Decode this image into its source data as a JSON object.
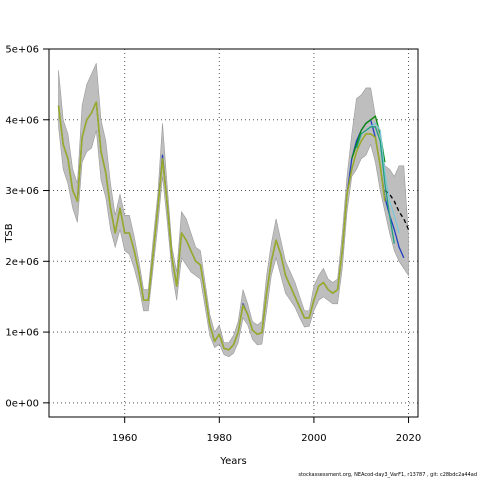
{
  "footer": "stockassessment.org, NEAcod-day3_VarF1, r13787 , git: c28bdc2a44ad",
  "chart_data": {
    "type": "line",
    "title": "",
    "xlabel": "Years",
    "ylabel": "TSB",
    "xlim": [
      1944,
      2022
    ],
    "ylim": [
      -200000,
      5000000
    ],
    "x_ticks": [
      1960,
      1980,
      2000,
      2020
    ],
    "x_tick_labels": [
      "1960",
      "1980",
      "2000",
      "2020"
    ],
    "y_ticks": [
      0,
      1000000,
      2000000,
      3000000,
      4000000,
      5000000
    ],
    "y_tick_labels": [
      "0e+00",
      "1e+06",
      "2e+06",
      "3e+06",
      "4e+06",
      "5e+06"
    ],
    "grid": "dotted",
    "confidence_band": {
      "color": "#bebebe",
      "x": [
        1946,
        1947,
        1948,
        1949,
        1950,
        1951,
        1952,
        1953,
        1954,
        1955,
        1956,
        1957,
        1958,
        1959,
        1960,
        1961,
        1962,
        1963,
        1964,
        1965,
        1966,
        1967,
        1968,
        1969,
        1970,
        1971,
        1972,
        1973,
        1974,
        1975,
        1976,
        1977,
        1978,
        1979,
        1980,
        1981,
        1982,
        1983,
        1984,
        1985,
        1986,
        1987,
        1988,
        1989,
        1990,
        1991,
        1992,
        1993,
        1994,
        1995,
        1996,
        1997,
        1998,
        1999,
        2000,
        2001,
        2002,
        2003,
        2004,
        2005,
        2006,
        2007,
        2008,
        2009,
        2010,
        2011,
        2012,
        2013,
        2014,
        2015,
        2016,
        2017,
        2018,
        2019,
        2020
      ],
      "upper": [
        4700000,
        4000000,
        3800000,
        3300000,
        3100000,
        4200000,
        4500000,
        4650000,
        4800000,
        4000000,
        3700000,
        3100000,
        2650000,
        2950000,
        2650000,
        2650000,
        2350000,
        2000000,
        1600000,
        1600000,
        2300000,
        2950000,
        3950000,
        3050000,
        2200000,
        1850000,
        2700000,
        2600000,
        2400000,
        2200000,
        2150000,
        1700000,
        1250000,
        1000000,
        1100000,
        850000,
        850000,
        950000,
        1150000,
        1600000,
        1400000,
        1150000,
        1100000,
        1150000,
        1800000,
        2250000,
        2600000,
        2300000,
        2000000,
        1850000,
        1700000,
        1500000,
        1300000,
        1300000,
        1650000,
        1800000,
        1900000,
        1750000,
        1700000,
        1750000,
        2400000,
        3200000,
        3800000,
        4300000,
        4350000,
        4450000,
        4450000,
        4050000,
        3700000,
        3350000,
        3300000,
        3200000,
        3350000,
        3350000,
        2350000
      ],
      "lower": [
        3900000,
        3300000,
        3100000,
        2750000,
        2550000,
        3400000,
        3550000,
        3600000,
        3850000,
        3150000,
        2900000,
        2450000,
        2200000,
        2450000,
        2150000,
        2100000,
        1900000,
        1650000,
        1300000,
        1300000,
        1900000,
        2500000,
        3200000,
        2550000,
        1850000,
        1450000,
        2050000,
        1950000,
        1850000,
        1800000,
        1750000,
        1350000,
        950000,
        780000,
        830000,
        680000,
        650000,
        700000,
        850000,
        1200000,
        1100000,
        900000,
        820000,
        830000,
        1300000,
        1800000,
        2050000,
        1800000,
        1550000,
        1450000,
        1350000,
        1200000,
        1070000,
        1080000,
        1300000,
        1450000,
        1500000,
        1450000,
        1400000,
        1400000,
        1900000,
        2700000,
        3200000,
        3300000,
        3450000,
        3500000,
        3650000,
        3400000,
        3000000,
        2700000,
        2400000,
        2150000,
        2000000,
        1900000,
        1800000
      ]
    },
    "series": [
      {
        "color": "#000000",
        "dash": "dashed",
        "x": [
          2015,
          2016,
          2017,
          2018,
          2019,
          2020
        ],
        "values": [
          3000000,
          2950000,
          2850000,
          2700000,
          2600000,
          2450000
        ]
      },
      {
        "color": "#2040c0",
        "x": [
          1946,
          1947,
          1948,
          1949,
          1950,
          1951,
          1952,
          1953,
          1954,
          1955,
          1956,
          1957,
          1958,
          1959,
          1960,
          1961,
          1962,
          1963,
          1964,
          1965,
          1966,
          1967,
          1968,
          1969,
          1970,
          1971,
          1972,
          1973,
          1974,
          1975,
          1976,
          1977,
          1978,
          1979,
          1980,
          1981,
          1982,
          1983,
          1984,
          1985,
          1986,
          1987,
          1988,
          1989,
          1990,
          1991,
          1992,
          1993,
          1994,
          1995,
          1996,
          1997,
          1998,
          1999,
          2000,
          2001,
          2002,
          2003,
          2004,
          2005,
          2006,
          2007,
          2008,
          2009,
          2010,
          2011,
          2012,
          2013,
          2014,
          2015,
          2016,
          2017,
          2018,
          2019
        ],
        "values": [
          4200000,
          3650000,
          3450000,
          3000000,
          2850000,
          3750000,
          4000000,
          4100000,
          4250000,
          3550000,
          3250000,
          2750000,
          2400000,
          2750000,
          2400000,
          2400000,
          2150000,
          1850000,
          1450000,
          1450000,
          2100000,
          2750000,
          3500000,
          2800000,
          2050000,
          1650000,
          2400000,
          2300000,
          2150000,
          2000000,
          1950000,
          1550000,
          1100000,
          870000,
          970000,
          770000,
          750000,
          820000,
          1000000,
          1400000,
          1250000,
          1030000,
          970000,
          990000,
          1550000,
          2000000,
          2300000,
          2100000,
          1800000,
          1650000,
          1500000,
          1350000,
          1200000,
          1200000,
          1450000,
          1650000,
          1700000,
          1600000,
          1550000,
          1600000,
          2150000,
          2950000,
          3450000,
          3700000,
          3850000,
          3950000,
          4000000,
          3750000,
          3350000,
          2900000,
          2650000,
          2450000,
          2200000,
          2050000
        ]
      },
      {
        "color": "#0a8a0a",
        "x": [
          2008,
          2009,
          2010,
          2011,
          2012,
          2013,
          2014,
          2015
        ],
        "values": [
          3450000,
          3650000,
          3850000,
          3950000,
          4000000,
          4050000,
          3800000,
          3400000
        ]
      },
      {
        "color": "#7dc8d8",
        "x": [
          2011,
          2012,
          2013,
          2014,
          2015,
          2016,
          2017,
          2018
        ],
        "values": [
          3850000,
          3900000,
          3950000,
          3850000,
          3250000,
          2850000,
          2650000,
          2400000
        ]
      },
      {
        "color": "#20a080",
        "x": [
          2009,
          2010,
          2011,
          2012,
          2013,
          2014,
          2015,
          2016,
          2017
        ],
        "values": [
          3600000,
          3800000,
          3850000,
          3900000,
          3900000,
          3700000,
          3100000,
          2650000,
          2250000
        ]
      },
      {
        "color": "#9aaa2a",
        "x": [
          1946,
          1947,
          1948,
          1949,
          1950,
          1951,
          1952,
          1953,
          1954,
          1955,
          1956,
          1957,
          1958,
          1959,
          1960,
          1961,
          1962,
          1963,
          1964,
          1965,
          1966,
          1967,
          1968,
          1969,
          1970,
          1971,
          1972,
          1973,
          1974,
          1975,
          1976,
          1977,
          1978,
          1979,
          1980,
          1981,
          1982,
          1983,
          1984,
          1985,
          1986,
          1987,
          1988,
          1989,
          1990,
          1991,
          1992,
          1993,
          1994,
          1995,
          1996,
          1997,
          1998,
          1999,
          2000,
          2001,
          2002,
          2003,
          2004,
          2005,
          2006,
          2007,
          2008,
          2009,
          2010,
          2011,
          2012,
          2013,
          2014,
          2015
        ],
        "values": [
          4200000,
          3650000,
          3450000,
          3000000,
          2850000,
          3750000,
          4000000,
          4100000,
          4250000,
          3550000,
          3250000,
          2750000,
          2400000,
          2750000,
          2400000,
          2400000,
          2150000,
          1850000,
          1450000,
          1450000,
          2100000,
          2750000,
          3450000,
          2800000,
          2050000,
          1650000,
          2400000,
          2300000,
          2150000,
          2000000,
          1950000,
          1550000,
          1100000,
          870000,
          970000,
          770000,
          750000,
          820000,
          1000000,
          1380000,
          1250000,
          1030000,
          970000,
          990000,
          1550000,
          2000000,
          2300000,
          2100000,
          1800000,
          1650000,
          1500000,
          1350000,
          1200000,
          1200000,
          1450000,
          1650000,
          1700000,
          1600000,
          1550000,
          1600000,
          2150000,
          2950000,
          3300000,
          3550000,
          3700000,
          3800000,
          3800000,
          3750000,
          3350000,
          2850000
        ]
      }
    ]
  }
}
